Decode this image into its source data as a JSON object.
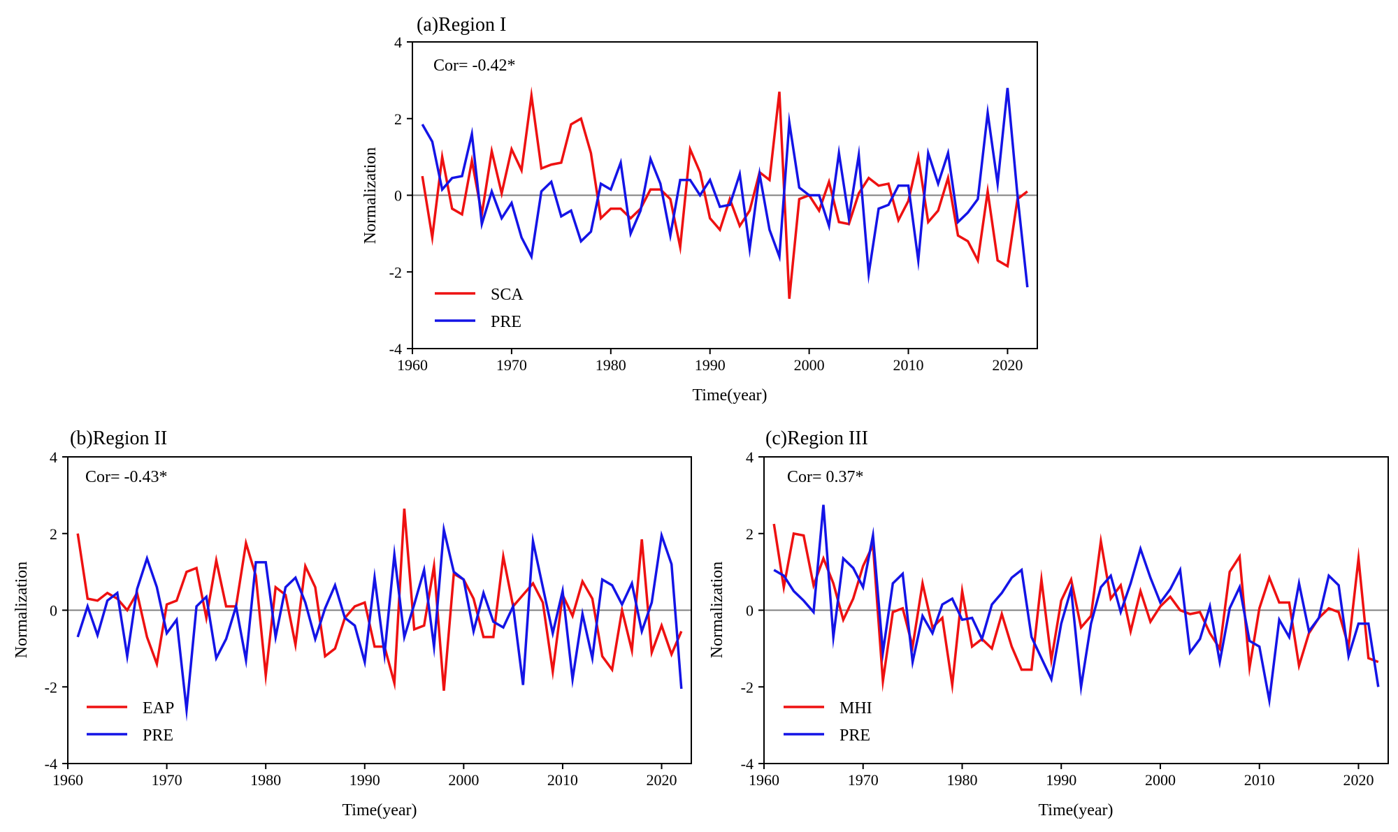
{
  "colors": {
    "series1": "#ee1111",
    "series2": "#1414e6",
    "zero": "#808080",
    "axis": "#000000"
  },
  "chart_data": [
    {
      "type": "line",
      "title": "(a)Region I",
      "xlabel": "Time(year)",
      "ylabel": "Normalization",
      "xlim": [
        1960,
        2023
      ],
      "ylim": [
        -4,
        4
      ],
      "xticks": [
        1960,
        1970,
        1980,
        1990,
        2000,
        2010,
        2020
      ],
      "yticks": [
        4,
        2,
        0,
        -2,
        -4
      ],
      "annotation": "Cor= -0.42*",
      "legend_position": "lower-left",
      "x": [
        1961,
        1962,
        1963,
        1964,
        1965,
        1966,
        1967,
        1968,
        1969,
        1970,
        1971,
        1972,
        1973,
        1974,
        1975,
        1976,
        1977,
        1978,
        1979,
        1980,
        1981,
        1982,
        1983,
        1984,
        1985,
        1986,
        1987,
        1988,
        1989,
        1990,
        1991,
        1992,
        1993,
        1994,
        1995,
        1996,
        1997,
        1998,
        1999,
        2000,
        2001,
        2002,
        2003,
        2004,
        2005,
        2006,
        2007,
        2008,
        2009,
        2010,
        2011,
        2012,
        2013,
        2014,
        2015,
        2016,
        2017,
        2018,
        2019,
        2020,
        2021,
        2022
      ],
      "series": [
        {
          "name": "SCA",
          "values": [
            0.5,
            -1.1,
            1.0,
            -0.35,
            -0.5,
            0.9,
            -0.5,
            1.15,
            0.05,
            1.2,
            0.65,
            2.6,
            0.7,
            0.8,
            0.85,
            1.85,
            2.0,
            1.1,
            -0.6,
            -0.35,
            -0.35,
            -0.6,
            -0.35,
            0.15,
            0.15,
            -0.1,
            -1.35,
            1.2,
            0.6,
            -0.6,
            -0.9,
            -0.1,
            -0.8,
            -0.4,
            0.6,
            0.4,
            2.7,
            -2.7,
            -0.1,
            0.0,
            -0.4,
            0.35,
            -0.7,
            -0.75,
            0.05,
            0.45,
            0.25,
            0.3,
            -0.65,
            -0.15,
            1.0,
            -0.7,
            -0.4,
            0.45,
            -1.05,
            -1.2,
            -1.7,
            0.1,
            -1.7,
            -1.85,
            -0.1,
            0.1
          ]
        },
        {
          "name": "PRE",
          "values": [
            1.85,
            1.4,
            0.15,
            0.45,
            0.5,
            1.6,
            -0.75,
            0.1,
            -0.6,
            -0.2,
            -1.1,
            -1.6,
            0.1,
            0.35,
            -0.55,
            -0.4,
            -1.2,
            -0.95,
            0.3,
            0.15,
            0.85,
            -1.0,
            -0.4,
            0.95,
            0.3,
            -1.05,
            0.4,
            0.4,
            0.0,
            0.4,
            -0.3,
            -0.25,
            0.55,
            -1.4,
            0.55,
            -0.9,
            -1.6,
            1.9,
            0.2,
            0.0,
            0.0,
            -0.8,
            1.1,
            -0.6,
            1.05,
            -2.05,
            -0.35,
            -0.25,
            0.25,
            0.25,
            -1.7,
            1.1,
            0.3,
            1.1,
            -0.7,
            -0.45,
            -0.1,
            2.15,
            0.3,
            2.8,
            0.0,
            -2.4
          ]
        }
      ]
    },
    {
      "type": "line",
      "title": "(b)Region II",
      "xlabel": "Time(year)",
      "ylabel": "Normalization",
      "xlim": [
        1960,
        2023
      ],
      "ylim": [
        -4,
        4
      ],
      "xticks": [
        1960,
        1970,
        1980,
        1990,
        2000,
        2010,
        2020
      ],
      "yticks": [
        4,
        2,
        0,
        -2,
        -4
      ],
      "annotation": "Cor= -0.43*",
      "legend_position": "lower-left",
      "x": [
        1961,
        1962,
        1963,
        1964,
        1965,
        1966,
        1967,
        1968,
        1969,
        1970,
        1971,
        1972,
        1973,
        1974,
        1975,
        1976,
        1977,
        1978,
        1979,
        1980,
        1981,
        1982,
        1983,
        1984,
        1985,
        1986,
        1987,
        1988,
        1989,
        1990,
        1991,
        1992,
        1993,
        1994,
        1995,
        1996,
        1997,
        1998,
        1999,
        2000,
        2001,
        2002,
        2003,
        2004,
        2005,
        2006,
        2007,
        2008,
        2009,
        2010,
        2011,
        2012,
        2013,
        2014,
        2015,
        2016,
        2017,
        2018,
        2019,
        2020,
        2021,
        2022
      ],
      "series": [
        {
          "name": "EAP",
          "values": [
            2.0,
            0.3,
            0.25,
            0.45,
            0.3,
            0.0,
            0.45,
            -0.7,
            -1.4,
            0.15,
            0.25,
            1.0,
            1.1,
            -0.2,
            1.3,
            0.1,
            0.1,
            1.75,
            0.9,
            -1.7,
            0.6,
            0.4,
            -0.9,
            1.15,
            0.6,
            -1.2,
            -1.0,
            -0.2,
            0.1,
            0.2,
            -0.95,
            -0.95,
            -1.9,
            2.65,
            -0.5,
            -0.4,
            1.15,
            -2.1,
            0.95,
            0.8,
            0.3,
            -0.7,
            -0.7,
            1.4,
            0.1,
            0.4,
            0.7,
            0.2,
            -1.6,
            0.4,
            -0.15,
            0.75,
            0.3,
            -1.2,
            -1.55,
            0.0,
            -1.05,
            1.85,
            -1.1,
            -0.4,
            -1.15,
            -0.55
          ]
        },
        {
          "name": "PRE",
          "values": [
            -0.7,
            0.1,
            -0.65,
            0.25,
            0.45,
            -1.2,
            0.55,
            1.35,
            0.6,
            -0.6,
            -0.25,
            -2.6,
            0.1,
            0.35,
            -1.25,
            -0.75,
            0.1,
            -1.3,
            1.25,
            1.25,
            -0.7,
            0.6,
            0.85,
            0.2,
            -0.75,
            0.05,
            0.65,
            -0.2,
            -0.4,
            -1.35,
            0.85,
            -1.15,
            1.45,
            -0.7,
            0.15,
            1.05,
            -0.95,
            2.1,
            1.0,
            0.8,
            -0.55,
            0.45,
            -0.3,
            -0.45,
            0.1,
            -1.95,
            1.8,
            0.6,
            -0.6,
            0.5,
            -1.8,
            -0.1,
            -1.25,
            0.8,
            0.65,
            0.15,
            0.7,
            -0.55,
            0.2,
            1.95,
            1.2,
            -2.05
          ]
        }
      ]
    },
    {
      "type": "line",
      "title": "(c)Region III",
      "xlabel": "Time(year)",
      "ylabel": "Normalization",
      "xlim": [
        1960,
        2023
      ],
      "ylim": [
        -4,
        4
      ],
      "xticks": [
        1960,
        1970,
        1980,
        1990,
        2000,
        2010,
        2020
      ],
      "yticks": [
        4,
        2,
        0,
        -2,
        -4
      ],
      "annotation": "Cor= 0.37*",
      "legend_position": "lower-left",
      "x": [
        1961,
        1962,
        1963,
        1964,
        1965,
        1966,
        1967,
        1968,
        1969,
        1970,
        1971,
        1972,
        1973,
        1974,
        1975,
        1976,
        1977,
        1978,
        1979,
        1980,
        1981,
        1982,
        1983,
        1984,
        1985,
        1986,
        1987,
        1988,
        1989,
        1990,
        1991,
        1992,
        1993,
        1994,
        1995,
        1996,
        1997,
        1998,
        1999,
        2000,
        2001,
        2002,
        2003,
        2004,
        2005,
        2006,
        2007,
        2008,
        2009,
        2010,
        2011,
        2012,
        2013,
        2014,
        2015,
        2016,
        2017,
        2018,
        2019,
        2020,
        2021,
        2022
      ],
      "series": [
        {
          "name": "MHI",
          "values": [
            2.25,
            0.6,
            2.0,
            1.95,
            0.65,
            1.35,
            0.7,
            -0.25,
            0.3,
            1.15,
            1.7,
            -1.85,
            -0.05,
            0.05,
            -0.95,
            0.7,
            -0.45,
            -0.2,
            -1.95,
            0.5,
            -0.95,
            -0.75,
            -1.0,
            -0.1,
            -0.95,
            -1.55,
            -1.55,
            0.8,
            -1.3,
            0.25,
            0.8,
            -0.45,
            -0.15,
            1.8,
            0.3,
            0.65,
            -0.55,
            0.5,
            -0.3,
            0.1,
            0.35,
            0.0,
            -0.1,
            -0.05,
            -0.6,
            -1.0,
            1.0,
            1.4,
            -1.5,
            0.05,
            0.85,
            0.2,
            0.2,
            -1.45,
            -0.6,
            -0.2,
            0.05,
            -0.05,
            -0.95,
            1.35,
            -1.25,
            -1.35
          ]
        },
        {
          "name": "PRE",
          "values": [
            1.05,
            0.9,
            0.5,
            0.25,
            -0.05,
            2.75,
            -0.7,
            1.35,
            1.1,
            0.6,
            1.95,
            -1.1,
            0.7,
            0.95,
            -1.35,
            -0.15,
            -0.6,
            0.15,
            0.3,
            -0.25,
            -0.2,
            -0.75,
            0.15,
            0.45,
            0.85,
            1.05,
            -0.7,
            -1.25,
            -1.8,
            -0.35,
            0.55,
            -2.0,
            -0.35,
            0.6,
            0.9,
            -0.05,
            0.7,
            1.6,
            0.85,
            0.2,
            0.55,
            1.05,
            -1.1,
            -0.75,
            0.1,
            -1.35,
            0.05,
            0.6,
            -0.8,
            -0.95,
            -2.35,
            -0.25,
            -0.7,
            0.7,
            -0.55,
            -0.2,
            0.9,
            0.65,
            -1.2,
            -0.35,
            -0.35,
            -2.0
          ]
        }
      ]
    }
  ]
}
